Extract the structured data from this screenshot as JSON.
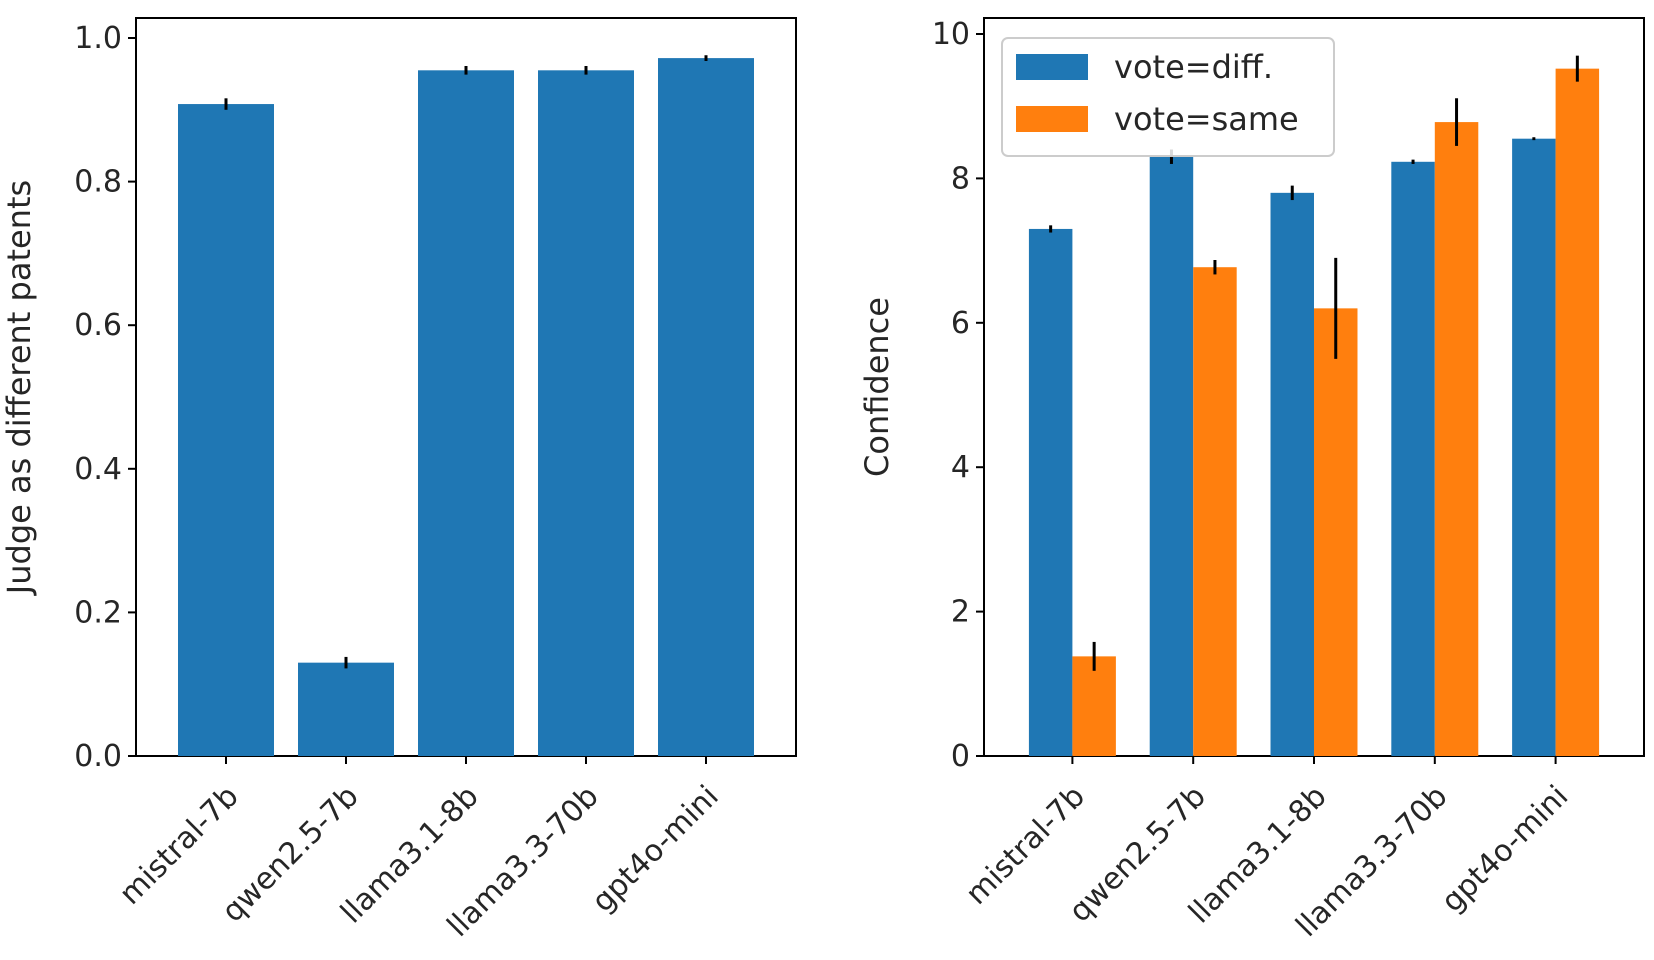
{
  "chart_data": [
    {
      "type": "bar",
      "title": "",
      "xlabel": "",
      "ylabel": "Judge as different patents",
      "categories": [
        "mistral-7b",
        "qwen2.5-7b",
        "llama3.1-8b",
        "llama3.3-70b",
        "gpt4o-mini"
      ],
      "values": [
        0.908,
        0.13,
        0.955,
        0.955,
        0.972
      ],
      "errors": [
        0.008,
        0.008,
        0.006,
        0.006,
        0.004
      ],
      "ylim": [
        0,
        1.0
      ],
      "yticks": [
        "0.0",
        "0.2",
        "0.4",
        "0.6",
        "0.8",
        "1.0"
      ],
      "ytick_values": [
        0,
        0.2,
        0.4,
        0.6,
        0.8,
        1.0
      ],
      "color": "#1f77b4",
      "grid": false
    },
    {
      "type": "bar",
      "title": "",
      "xlabel": "",
      "ylabel": "Confidence",
      "categories": [
        "mistral-7b",
        "qwen2.5-7b",
        "llama3.1-8b",
        "llama3.3-70b",
        "gpt4o-mini"
      ],
      "series": [
        {
          "name": "vote=diff.",
          "color": "#1f77b4",
          "values": [
            7.3,
            8.3,
            7.8,
            8.23,
            8.55
          ],
          "errors": [
            0.05,
            0.1,
            0.1,
            0.03,
            0.02
          ]
        },
        {
          "name": "vote=same",
          "color": "#ff7f0e",
          "values": [
            1.38,
            6.77,
            6.2,
            8.78,
            9.52
          ],
          "errors": [
            0.2,
            0.1,
            0.7,
            0.33,
            0.18
          ]
        }
      ],
      "ylim": [
        0,
        10
      ],
      "yticks": [
        "0",
        "2",
        "4",
        "6",
        "8",
        "10"
      ],
      "ytick_values": [
        0,
        2,
        4,
        6,
        8,
        10
      ],
      "legend": "top-left",
      "grid": false
    }
  ]
}
